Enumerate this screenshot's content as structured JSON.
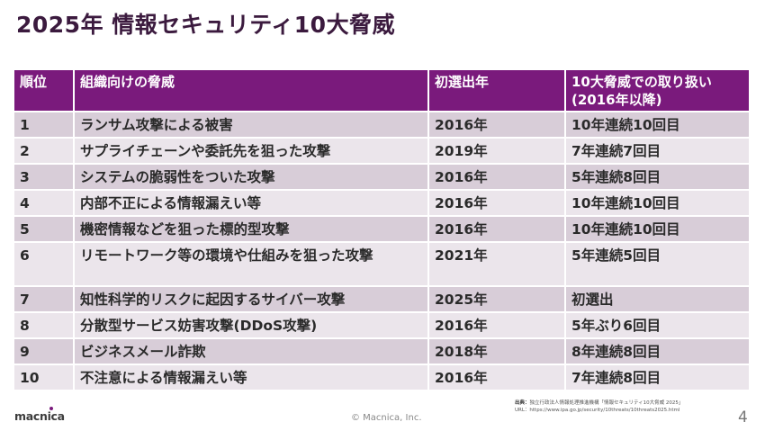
{
  "slide": {
    "title": "2025年 情報セキュリティ10大脅威",
    "page_number": "4",
    "copyright": "© Macnica, Inc.",
    "logo_text": "MACNICA",
    "accent_color": "#7a1a7c"
  },
  "table": {
    "headers": {
      "rank": "順位",
      "threat": "組織向けの脅威",
      "first_year": "初選出年",
      "handling_line1": "10大脅威での取り扱い",
      "handling_line2": "(2016年以降)"
    },
    "rows": [
      {
        "rank": "1",
        "threat": "ランサム攻撃による被害",
        "first_year": "2016年",
        "handling": "10年連続10回目"
      },
      {
        "rank": "2",
        "threat": "サプライチェーンや委託先を狙った攻撃",
        "first_year": "2019年",
        "handling": "7年連続7回目"
      },
      {
        "rank": "3",
        "threat": "システムの脆弱性をついた攻撃",
        "first_year": "2016年",
        "handling": "5年連続8回目"
      },
      {
        "rank": "4",
        "threat": "内部不正による情報漏えい等",
        "first_year": "2016年",
        "handling": "10年連続10回目"
      },
      {
        "rank": "5",
        "threat": "機密情報などを狙った標的型攻撃",
        "first_year": "2016年",
        "handling": "10年連続10回目"
      },
      {
        "rank": "6",
        "threat": "リモートワーク等の環境や仕組みを狙った攻撃",
        "first_year": "2021年",
        "handling": "5年連続5回目"
      },
      {
        "rank": "7",
        "threat": "知性科学的リスクに起因するサイバー攻撃",
        "first_year": "2025年",
        "handling": "初選出"
      },
      {
        "rank": "8",
        "threat": "分散型サービス妨害攻撃(DDoS攻撃)",
        "first_year": "2016年",
        "handling": "5年ぶり6回目"
      },
      {
        "rank": "9",
        "threat": "ビジネスメール詐欺",
        "first_year": "2018年",
        "handling": "8年連続8回目"
      },
      {
        "rank": "10",
        "threat": "不注意による情報漏えい等",
        "first_year": "2016年",
        "handling": "7年連続8回目"
      }
    ]
  },
  "source": {
    "label": "出典：",
    "text": "独立行政法人情報処理推進機構「情報セキュリティ10大脅威 2025」",
    "url_line": "URL：https://www.ipa.go.jp/security/10threats/10threats2025.html"
  }
}
